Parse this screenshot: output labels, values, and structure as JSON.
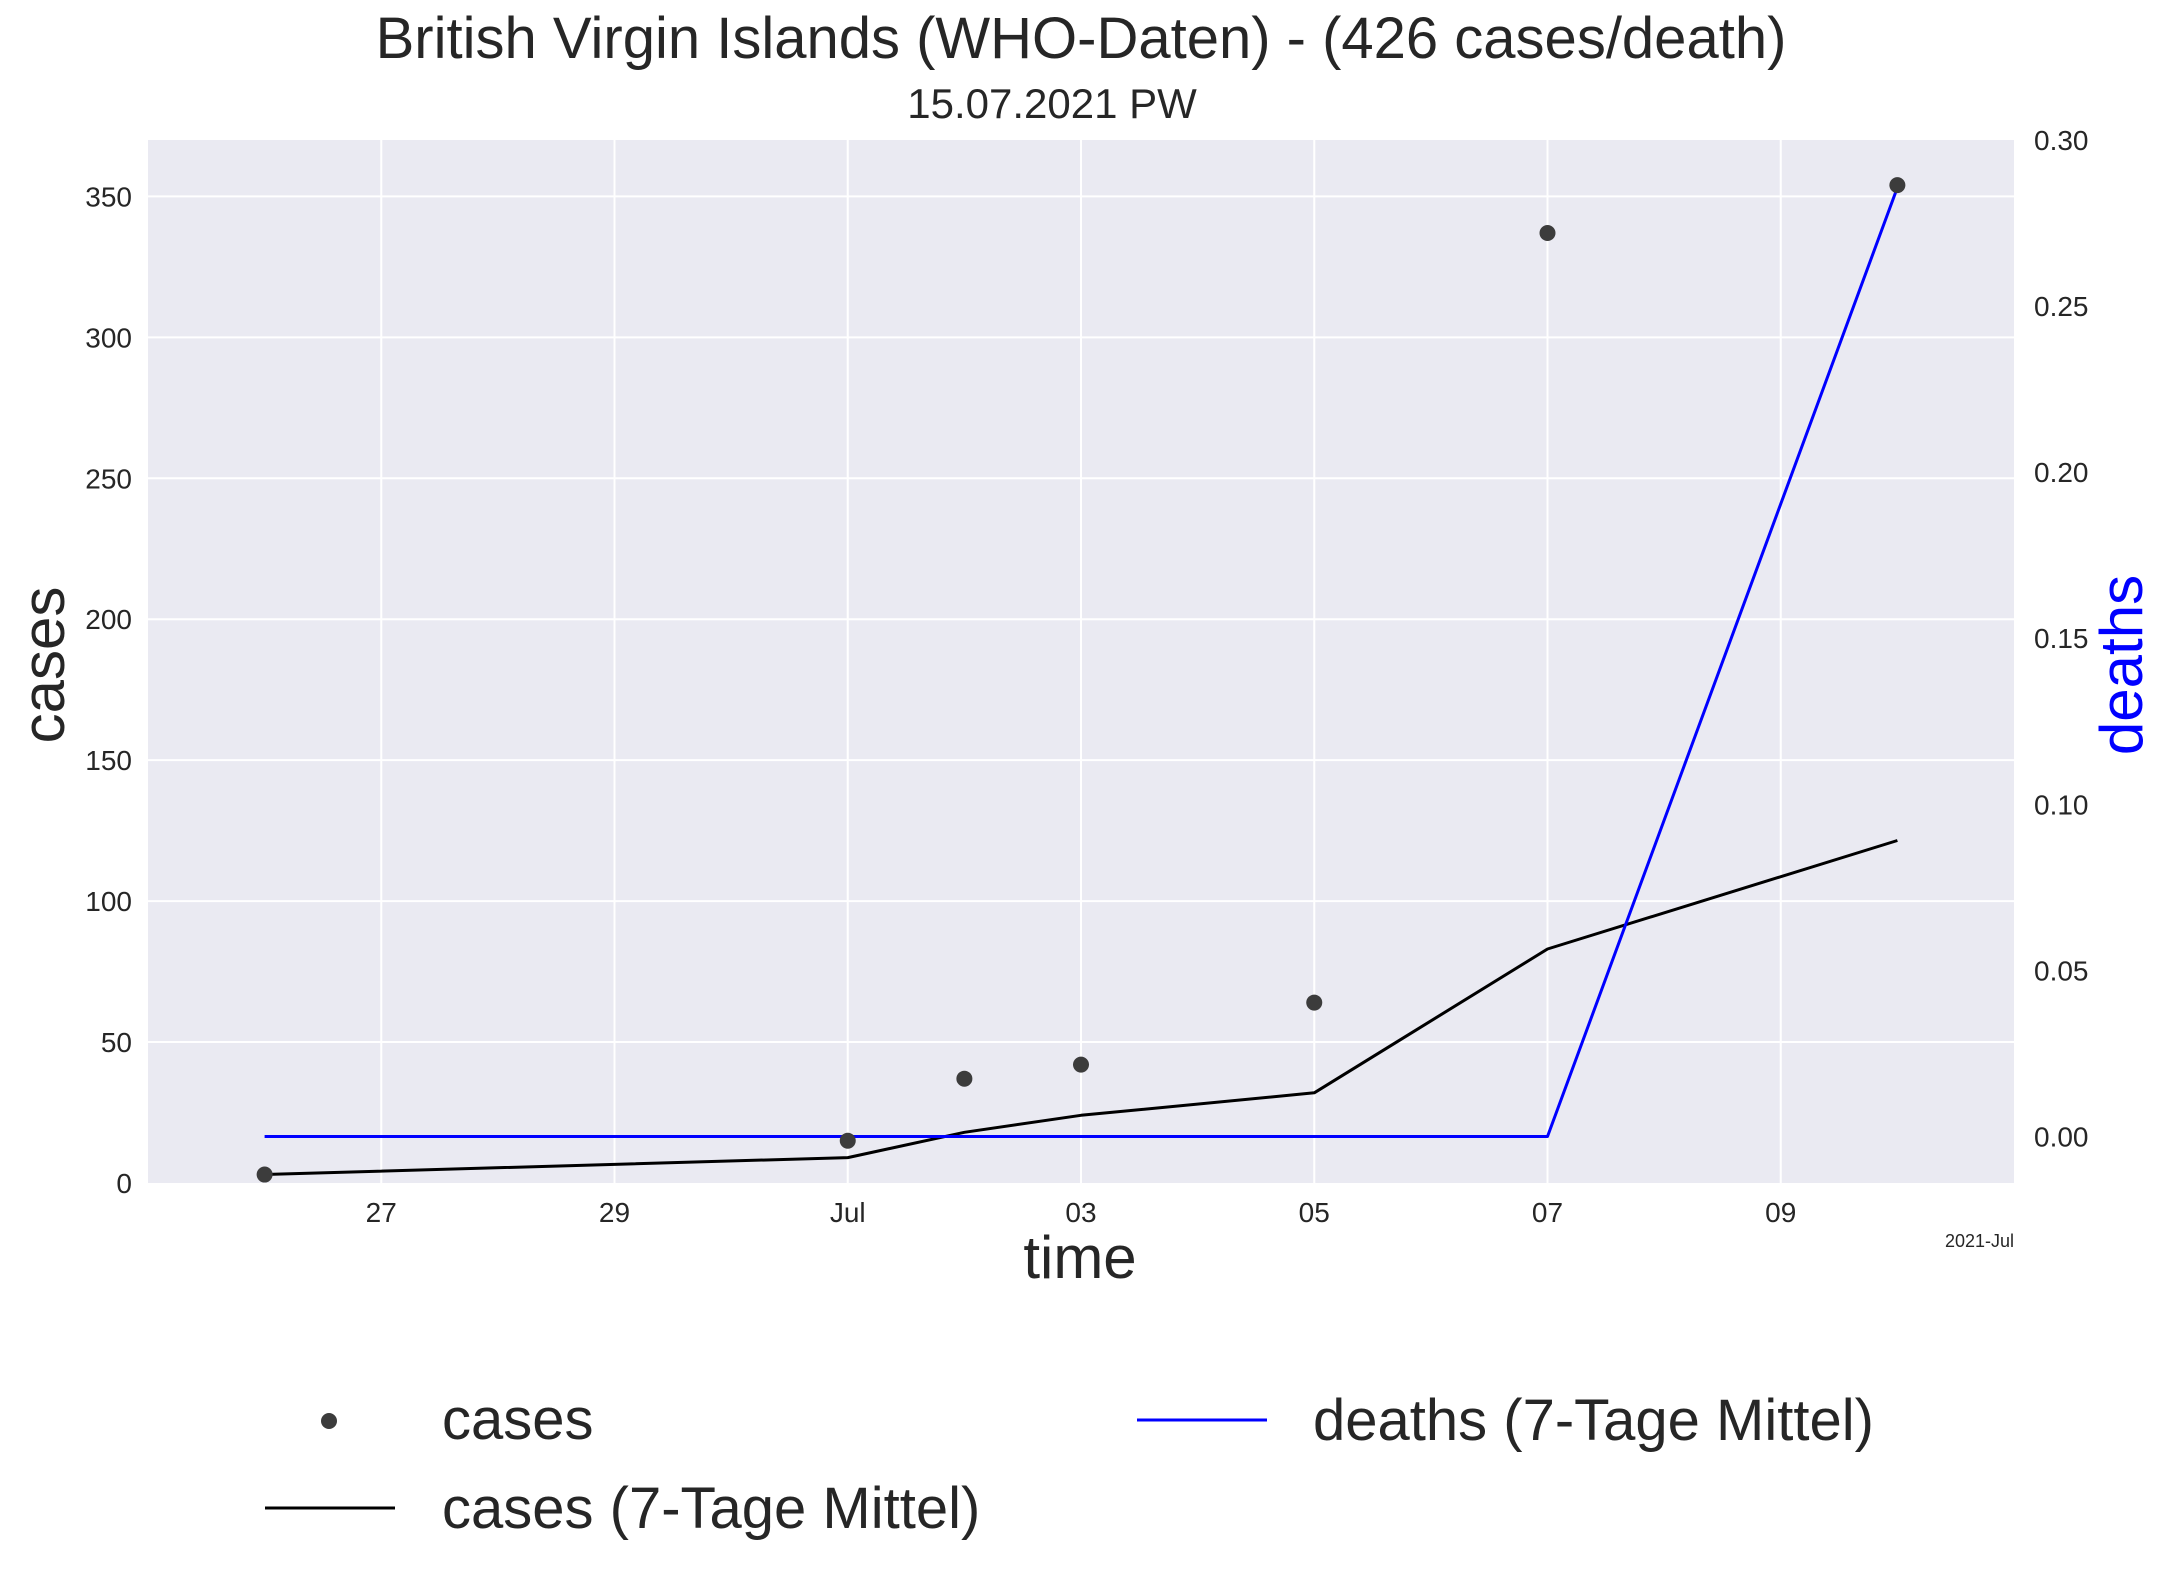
{
  "chart_data": {
    "type": "line",
    "title": "British Virgin Islands (WHO-Daten) - (426 cases/death)",
    "subtitle": "15.07.2021 PW",
    "xlabel": "time",
    "ylabel_left": "cases",
    "ylabel_right": "deaths",
    "x_offset_label": "2021-Jul",
    "xlim": [
      "2021-06-25",
      "2021-07-11"
    ],
    "x_ticks": [
      {
        "date": "2021-06-27",
        "label": "27"
      },
      {
        "date": "2021-06-29",
        "label": "29"
      },
      {
        "date": "2021-07-01",
        "label": "Jul"
      },
      {
        "date": "2021-07-03",
        "label": "03"
      },
      {
        "date": "2021-07-05",
        "label": "05"
      },
      {
        "date": "2021-07-07",
        "label": "07"
      },
      {
        "date": "2021-07-09",
        "label": "09"
      }
    ],
    "ylim_left": [
      0,
      370
    ],
    "y_ticks_left": [
      "0",
      "50",
      "100",
      "150",
      "200",
      "250",
      "300",
      "350"
    ],
    "ylim_right": [
      -0.014,
      0.3
    ],
    "y_ticks_right": [
      "0.00",
      "0.05",
      "0.10",
      "0.15",
      "0.20",
      "0.25",
      "0.30"
    ],
    "grid": true,
    "legend_position": "bottom",
    "series": [
      {
        "name": "cases",
        "kind": "scatter",
        "axis": "left",
        "color": "#3c3c3c",
        "points": [
          {
            "x": "2021-06-26",
            "y": 3
          },
          {
            "x": "2021-07-01",
            "y": 15
          },
          {
            "x": "2021-07-02",
            "y": 37
          },
          {
            "x": "2021-07-03",
            "y": 42
          },
          {
            "x": "2021-07-05",
            "y": 64
          },
          {
            "x": "2021-07-07",
            "y": 337
          },
          {
            "x": "2021-07-10",
            "y": 354
          }
        ]
      },
      {
        "name": "cases (7-Tage Mittel)",
        "kind": "line",
        "axis": "left",
        "color": "#000000",
        "points": [
          {
            "x": "2021-06-26",
            "y": 3
          },
          {
            "x": "2021-07-01",
            "y": 9
          },
          {
            "x": "2021-07-02",
            "y": 18
          },
          {
            "x": "2021-07-03",
            "y": 24
          },
          {
            "x": "2021-07-05",
            "y": 32
          },
          {
            "x": "2021-07-07",
            "y": 83
          },
          {
            "x": "2021-07-10",
            "y": 121.5
          }
        ]
      },
      {
        "name": "deaths (7-Tage Mittel)",
        "kind": "line",
        "axis": "right",
        "color": "#0000ff",
        "points": [
          {
            "x": "2021-06-26",
            "y": 0
          },
          {
            "x": "2021-07-01",
            "y": 0
          },
          {
            "x": "2021-07-02",
            "y": 0
          },
          {
            "x": "2021-07-03",
            "y": 0
          },
          {
            "x": "2021-07-05",
            "y": 0
          },
          {
            "x": "2021-07-07",
            "y": 0
          },
          {
            "x": "2021-07-10",
            "y": 0.2857
          }
        ]
      }
    ],
    "legend": [
      {
        "label": "cases",
        "series": 0
      },
      {
        "label": "cases (7-Tage Mittel)",
        "series": 1
      },
      {
        "label": "deaths (7-Tage Mittel)",
        "series": 2
      }
    ]
  }
}
